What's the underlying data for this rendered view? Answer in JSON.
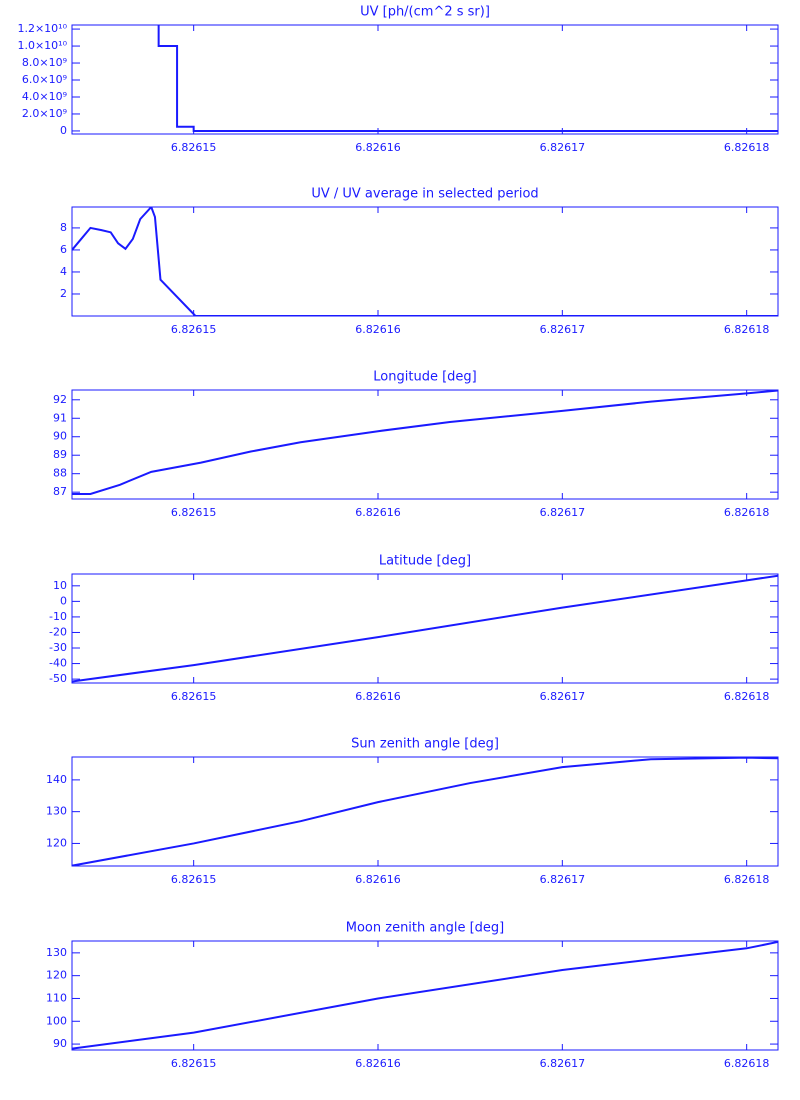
{
  "chart_data": [
    {
      "type": "line",
      "title": "UV [ph/(cm^2 s sr)]",
      "color": "#1a1aff",
      "x": [
        6.8261481,
        6.8261481,
        6.8261491,
        6.8261491,
        6.82615,
        6.82615,
        6.8261817
      ],
      "values": [
        13000000000,
        10000000000,
        10000000000,
        500000000,
        500000000,
        0,
        0
      ],
      "xlim": [
        6.8261434,
        6.8261817
      ],
      "xticks": [
        6.82615,
        6.82616,
        6.82617,
        6.82618
      ],
      "ylim": [
        -360000000,
        12480000000
      ],
      "yticks": [
        {
          "value": 0,
          "label": "0"
        },
        {
          "value": 2000000000,
          "label": "2.0×10⁹"
        },
        {
          "value": 4000000000,
          "label": "4.0×10⁹"
        },
        {
          "value": 6000000000,
          "label": "6.0×10⁹"
        },
        {
          "value": 8000000000,
          "label": "8.0×10⁹"
        },
        {
          "value": 10000000000,
          "label": "1.0×10¹⁰"
        },
        {
          "value": 12000000000,
          "label": "1.2×10¹⁰"
        }
      ]
    },
    {
      "type": "line",
      "title": "UV / UV average in selected period",
      "color": "#1a1aff",
      "x": [
        6.8261434,
        6.8261439,
        6.8261444,
        6.826145,
        6.8261455,
        6.8261459,
        6.8261463,
        6.8261467,
        6.8261471,
        6.8261477,
        6.8261479,
        6.8261482,
        6.8261501,
        6.8261817
      ],
      "values": [
        6.0,
        7.0,
        8.0,
        7.8,
        7.6,
        6.6,
        6.1,
        7.0,
        8.8,
        9.9,
        9.0,
        3.3,
        0,
        0
      ],
      "xlim": [
        6.8261434,
        6.8261817
      ],
      "xticks": [
        6.82615,
        6.82616,
        6.82617,
        6.82618
      ],
      "ylim": [
        0,
        9.9
      ],
      "yticks": [
        2,
        4,
        6,
        8
      ]
    },
    {
      "type": "line",
      "title": "Longitude [deg]",
      "color": "#1a1aff",
      "x": [
        6.8261434,
        6.8261444,
        6.826146,
        6.8261477,
        6.8261504,
        6.8261531,
        6.8261558,
        6.82616,
        6.8261639,
        6.82617,
        6.8261748,
        6.82618,
        6.8261817
      ],
      "values": [
        86.9,
        86.9,
        87.4,
        88.1,
        88.6,
        89.2,
        89.7,
        90.3,
        90.8,
        91.4,
        91.9,
        92.35,
        92.5
      ],
      "xlim": [
        6.8261434,
        6.8261817
      ],
      "xticks": [
        6.82615,
        6.82616,
        6.82617,
        6.82618
      ],
      "ylim": [
        86.63,
        92.53
      ],
      "yticks": [
        87,
        88,
        89,
        90,
        91,
        92
      ]
    },
    {
      "type": "line",
      "title": "Latitude [deg]",
      "color": "#1a1aff",
      "x": [
        6.8261434,
        6.82615,
        6.82616,
        6.82617,
        6.82618,
        6.8261817
      ],
      "values": [
        -51.5,
        -41,
        -23,
        -4,
        13.5,
        16.5
      ],
      "xlim": [
        6.8261434,
        6.8261817
      ],
      "xticks": [
        6.82615,
        6.82616,
        6.82617,
        6.82618
      ],
      "ylim": [
        -52.5,
        17.6
      ],
      "yticks": [
        -50,
        -40,
        -30,
        -20,
        -10,
        0,
        10
      ]
    },
    {
      "type": "line",
      "title": "Sun zenith angle [deg]",
      "color": "#1a1aff",
      "x": [
        6.8261434,
        6.82615,
        6.8261558,
        6.82616,
        6.826165,
        6.82617,
        6.8261748,
        6.82618,
        6.8261817
      ],
      "values": [
        113,
        120,
        127,
        133,
        139,
        144,
        146.5,
        147,
        146.8
      ],
      "xlim": [
        6.8261434,
        6.8261817
      ],
      "xticks": [
        6.82615,
        6.82616,
        6.82617,
        6.82618
      ],
      "ylim": [
        112.9,
        147.2
      ],
      "yticks": [
        120,
        130,
        140
      ]
    },
    {
      "type": "line",
      "title": "Moon zenith angle [deg]",
      "color": "#1a1aff",
      "x": [
        6.8261434,
        6.82615,
        6.82616,
        6.82617,
        6.82618,
        6.8261817
      ],
      "values": [
        88,
        95,
        110,
        122.5,
        132,
        134.8
      ],
      "xlim": [
        6.8261434,
        6.8261817
      ],
      "xticks": [
        6.82615,
        6.82616,
        6.82617,
        6.82618
      ],
      "ylim": [
        87.4,
        135.2
      ],
      "yticks": [
        90,
        100,
        110,
        120,
        130
      ]
    }
  ]
}
